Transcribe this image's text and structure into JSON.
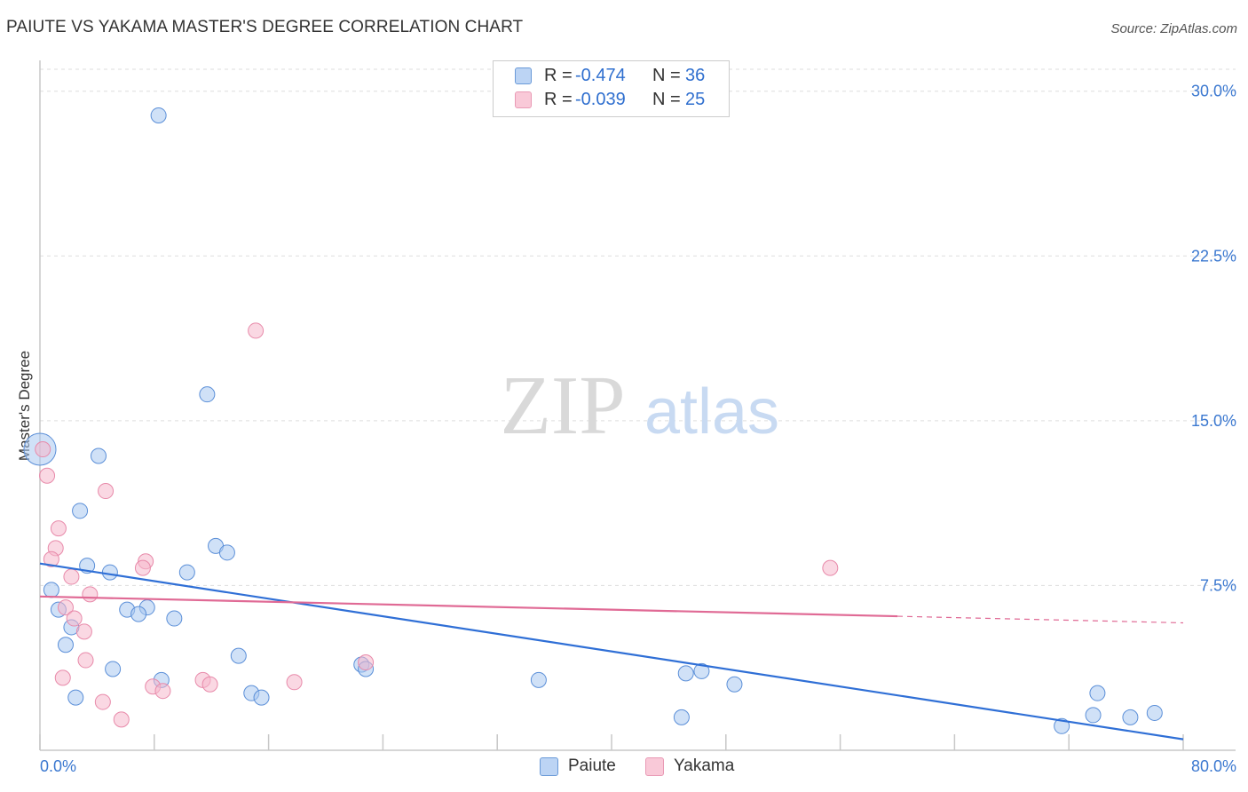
{
  "header": {
    "title": "PAIUTE VS YAKAMA MASTER'S DEGREE CORRELATION CHART",
    "source": "Source: ZipAtlas.com"
  },
  "watermark": {
    "zip": "ZIP",
    "atlas": "atlas"
  },
  "legend": {
    "paiute": {
      "r_label": "R =",
      "r_value": "-0.474",
      "n_label": "N =",
      "n_value": "36"
    },
    "yakama": {
      "r_label": "R =",
      "r_value": "-0.039",
      "n_label": "N =",
      "n_value": "25"
    }
  },
  "bottom_legend": {
    "paiute": "Paiute",
    "yakama": "Yakama"
  },
  "colors": {
    "paiute_fill": "#aac8f0",
    "paiute_stroke": "#5b8fd8",
    "paiute_line": "#2f6fd6",
    "yakama_fill": "#f6b8cc",
    "yakama_stroke": "#e88aaa",
    "yakama_line": "#e06a95",
    "tick_text": "#3b78d0",
    "grid": "#dddddd"
  },
  "chart_data": {
    "type": "scatter",
    "title": "PAIUTE VS YAKAMA MASTER'S DEGREE CORRELATION CHART",
    "xlabel": "",
    "ylabel": "Master's Degree",
    "xlim": [
      0,
      80
    ],
    "ylim": [
      0,
      31
    ],
    "x_tick_labels": [
      {
        "value": 0,
        "label": "0.0%"
      },
      {
        "value": 80,
        "label": "80.0%"
      }
    ],
    "y_ticks": [
      {
        "value": 7.5,
        "label": "7.5%"
      },
      {
        "value": 15,
        "label": "15.0%"
      },
      {
        "value": 22.5,
        "label": "22.5%"
      },
      {
        "value": 30,
        "label": "30.0%"
      }
    ],
    "series": [
      {
        "name": "Paiute",
        "points": [
          [
            8.3,
            28.9
          ],
          [
            11.7,
            16.2
          ],
          [
            0.0,
            13.7
          ],
          [
            4.1,
            13.4
          ],
          [
            2.8,
            10.9
          ],
          [
            12.3,
            9.3
          ],
          [
            13.1,
            9.0
          ],
          [
            3.3,
            8.4
          ],
          [
            4.9,
            8.1
          ],
          [
            10.3,
            8.1
          ],
          [
            0.8,
            7.3
          ],
          [
            1.3,
            6.4
          ],
          [
            6.1,
            6.4
          ],
          [
            7.5,
            6.5
          ],
          [
            6.9,
            6.2
          ],
          [
            9.4,
            6.0
          ],
          [
            2.2,
            5.6
          ],
          [
            1.8,
            4.8
          ],
          [
            13.9,
            4.3
          ],
          [
            5.1,
            3.7
          ],
          [
            8.5,
            3.2
          ],
          [
            2.5,
            2.4
          ],
          [
            14.8,
            2.6
          ],
          [
            15.5,
            2.4
          ],
          [
            22.5,
            3.9
          ],
          [
            22.8,
            3.7
          ],
          [
            34.9,
            3.2
          ],
          [
            45.2,
            3.5
          ],
          [
            46.3,
            3.6
          ],
          [
            48.6,
            3.0
          ],
          [
            44.9,
            1.5
          ],
          [
            71.5,
            1.1
          ],
          [
            74.0,
            2.6
          ],
          [
            73.7,
            1.6
          ],
          [
            76.3,
            1.5
          ],
          [
            78.0,
            1.7
          ]
        ],
        "sizes": [
          1,
          1,
          3,
          1,
          1,
          1,
          1,
          1,
          1,
          1,
          1,
          1,
          1,
          1,
          1,
          1,
          1,
          1,
          1,
          1,
          1,
          1,
          1,
          1,
          1,
          1,
          1,
          1,
          1,
          1,
          1,
          1,
          1,
          1,
          1,
          1
        ],
        "trend": {
          "x0": 0,
          "y0": 8.5,
          "x1": 80,
          "y1": 0.5
        }
      },
      {
        "name": "Yakama",
        "points": [
          [
            15.1,
            19.1
          ],
          [
            0.2,
            13.7
          ],
          [
            0.5,
            12.5
          ],
          [
            4.6,
            11.8
          ],
          [
            1.3,
            10.1
          ],
          [
            1.1,
            9.2
          ],
          [
            0.8,
            8.7
          ],
          [
            7.4,
            8.6
          ],
          [
            7.2,
            8.3
          ],
          [
            2.2,
            7.9
          ],
          [
            3.5,
            7.1
          ],
          [
            55.3,
            8.3
          ],
          [
            1.8,
            6.5
          ],
          [
            2.4,
            6.0
          ],
          [
            3.1,
            5.4
          ],
          [
            3.2,
            4.1
          ],
          [
            1.6,
            3.3
          ],
          [
            22.8,
            4.0
          ],
          [
            11.4,
            3.2
          ],
          [
            7.9,
            2.9
          ],
          [
            11.9,
            3.0
          ],
          [
            8.6,
            2.7
          ],
          [
            17.8,
            3.1
          ],
          [
            4.4,
            2.2
          ],
          [
            5.7,
            1.4
          ]
        ],
        "sizes": [
          1,
          1,
          1,
          1,
          1,
          1,
          1,
          1,
          1,
          1,
          1,
          1,
          1,
          1,
          1,
          1,
          1,
          1,
          1,
          1,
          1,
          1,
          1,
          1,
          1
        ],
        "trend": {
          "x0": 0,
          "y0": 7.0,
          "x1": 60,
          "y1": 6.1,
          "dash_to_x": 80,
          "dash_to_y": 5.8
        }
      }
    ]
  }
}
